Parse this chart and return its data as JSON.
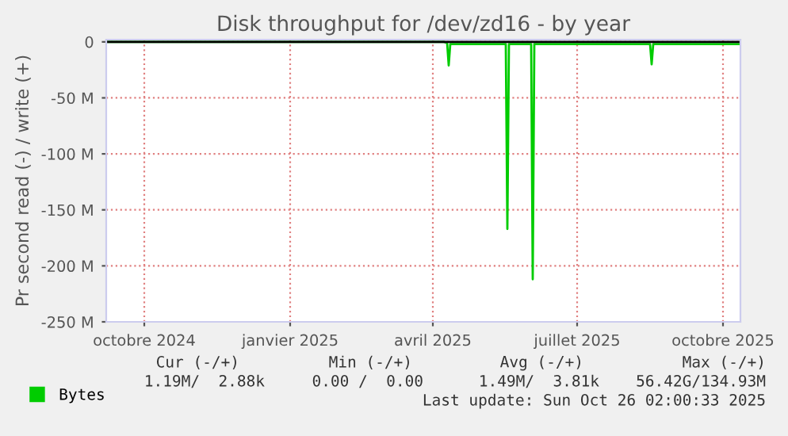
{
  "chart_data": {
    "type": "line",
    "title": "Disk throughput for /dev/zd16 - by year",
    "ylabel": "Pr second read (-) / write (+)",
    "x": [
      "2024-09-21",
      "2025-04-22",
      "2025-04-24",
      "2025-04-25",
      "2025-04-26",
      "2025-05-31",
      "2025-06-01",
      "2025-06-02",
      "2025-06-16",
      "2025-06-17",
      "2025-06-18",
      "2025-08-30",
      "2025-08-31",
      "2025-09-01",
      "2025-10-26"
    ],
    "series": [
      {
        "name": "Bytes",
        "color": "#00cc00",
        "values": [
          0,
          0,
          -1,
          -21,
          -2,
          -2,
          -167,
          -2,
          -2,
          -212,
          -2,
          -2,
          -20,
          -2,
          -2
        ]
      }
    ],
    "xlim": [
      "2024-09-21",
      "2025-10-26"
    ],
    "xticks": [
      {
        "value": "2024-10-15",
        "label": "octobre 2024"
      },
      {
        "value": "2025-01-15",
        "label": "janvier 2025"
      },
      {
        "value": "2025-04-15",
        "label": "avril 2025"
      },
      {
        "value": "2025-07-15",
        "label": "juillet 2025"
      },
      {
        "value": "2025-10-15",
        "label": "octobre 2025"
      }
    ],
    "ylim": [
      -250,
      2
    ],
    "yticks": [
      {
        "value": 0,
        "label": "0"
      },
      {
        "value": -50,
        "label": "-50 M"
      },
      {
        "value": -100,
        "label": "-100 M"
      },
      {
        "value": -150,
        "label": "-150 M"
      },
      {
        "value": -200,
        "label": "-200 M"
      },
      {
        "value": -250,
        "label": "-250 M"
      }
    ],
    "grid": true,
    "legend": "bottom left",
    "marker": "none",
    "line_style": "solid",
    "annotations": [
      "Cur (-/+)",
      "Min (-/+)",
      "Avg (-/+)",
      "Max (-/+)",
      "1.19M/  2.88k",
      "0.00 /  0.00",
      "1.49M/  3.81k",
      "56.42G/134.93M",
      "Last update: Sun Oct 26 02:00:33 2025"
    ]
  }
}
